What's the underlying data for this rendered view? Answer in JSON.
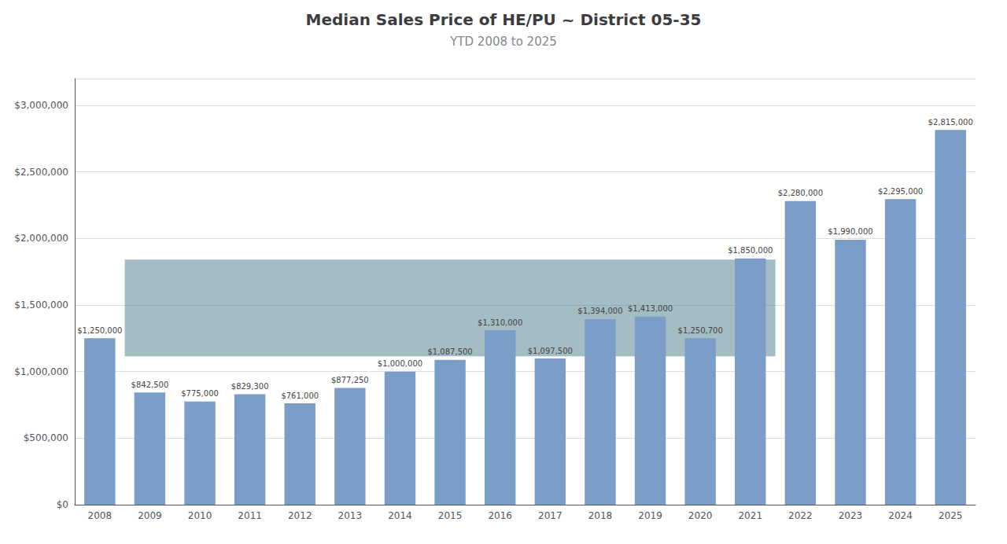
{
  "chart_data": {
    "type": "bar",
    "title": "Median Sales Price of HE/PU ~ District 05-35",
    "subtitle": "YTD 2008 to 2025",
    "categories": [
      "2008",
      "2009",
      "2010",
      "2011",
      "2012",
      "2013",
      "2014",
      "2015",
      "2016",
      "2017",
      "2018",
      "2019",
      "2020",
      "2021",
      "2022",
      "2023",
      "2024",
      "2025"
    ],
    "values": [
      1250000,
      842500,
      775000,
      829300,
      761000,
      877250,
      1000000,
      1087500,
      1310000,
      1097500,
      1394000,
      1413000,
      1250700,
      1850000,
      2280000,
      1990000,
      2295000,
      2815000
    ],
    "value_labels": [
      "$1,250,000",
      "$842,500",
      "$775,000",
      "$829,300",
      "$761,000",
      "$877,250",
      "$1,000,000",
      "$1,087,500",
      "$1,310,000",
      "$1,097,500",
      "$1,394,000",
      "$1,413,000",
      "$1,250,700",
      "$1,850,000",
      "$2,280,000",
      "$1,990,000",
      "$2,295,000",
      "$2,815,000"
    ],
    "data_labels": true,
    "color": "#7B9EC9",
    "highlight": {
      "from": "2009",
      "to": "2021",
      "y_bottom": 1115000,
      "y_top": 1840000,
      "color": "#4A7A8A"
    },
    "ylim": [
      0,
      3200000
    ],
    "yticks": [
      {
        "value": 0,
        "label": "$0"
      },
      {
        "value": 500000,
        "label": "$500,000"
      },
      {
        "value": 1000000,
        "label": "$1,000,000"
      },
      {
        "value": 1500000,
        "label": "$1,500,000"
      },
      {
        "value": 2000000,
        "label": "$2,000,000"
      },
      {
        "value": 2500000,
        "label": "$2,500,000"
      },
      {
        "value": 3000000,
        "label": "$3,000,000"
      }
    ],
    "grid": true
  }
}
